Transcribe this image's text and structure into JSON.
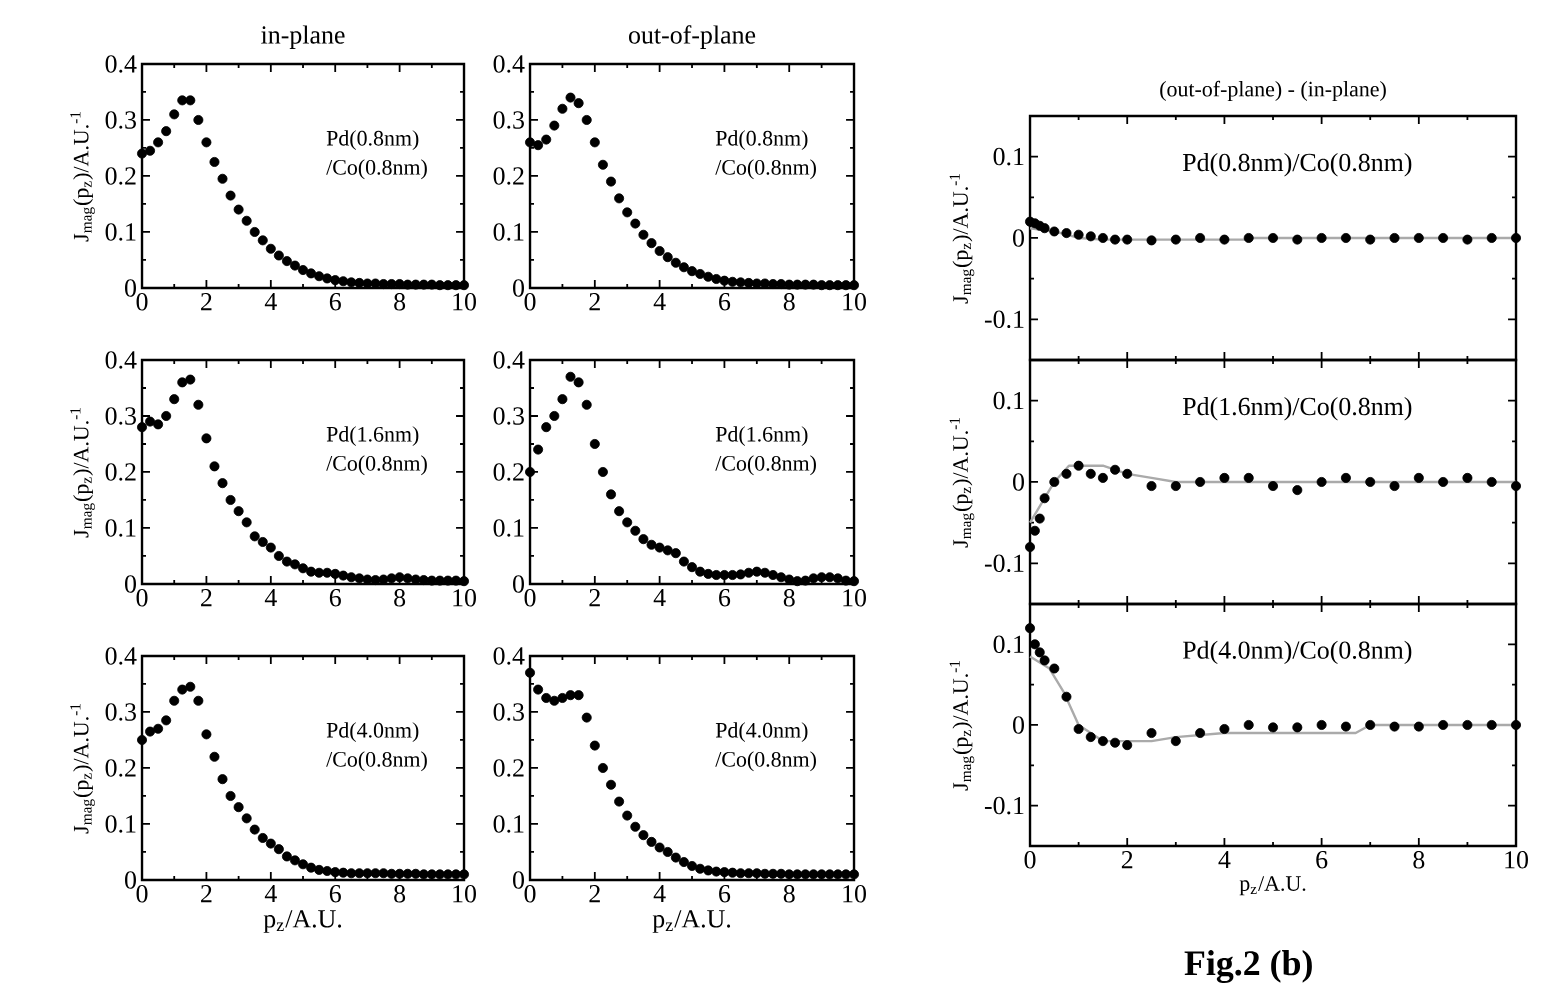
{
  "chart_data": [
    {
      "type": "scatter",
      "title": "in-plane",
      "ylabel": "J$_{mag}$(p$_{z}$)/A.U.$^{-1}$",
      "annotations": [
        "Pd(0.8nm)",
        "/Co(0.8nm)"
      ],
      "marker": "circle",
      "xlim": [
        0,
        10
      ],
      "ylim": [
        0,
        0.4
      ],
      "xticks": [
        0,
        2,
        4,
        6,
        8,
        10
      ],
      "yticks": [
        0,
        0.1,
        0.2,
        0.3,
        0.4
      ],
      "x": [
        0,
        0.25,
        0.5,
        0.75,
        1,
        1.25,
        1.5,
        1.75,
        2,
        2.25,
        2.5,
        2.75,
        3,
        3.25,
        3.5,
        3.75,
        4,
        4.25,
        4.5,
        4.75,
        5,
        5.25,
        5.5,
        5.75,
        6,
        6.25,
        6.5,
        6.75,
        7,
        7.25,
        7.5,
        7.75,
        8,
        8.25,
        8.5,
        8.75,
        9,
        9.25,
        9.5,
        9.75,
        10
      ],
      "series": [
        {
          "color": "#000000",
          "values": [
            0.24,
            0.245,
            0.26,
            0.28,
            0.31,
            0.335,
            0.335,
            0.3,
            0.26,
            0.225,
            0.195,
            0.165,
            0.14,
            0.12,
            0.1,
            0.085,
            0.07,
            0.058,
            0.048,
            0.04,
            0.032,
            0.026,
            0.021,
            0.017,
            0.014,
            0.012,
            0.01,
            0.009,
            0.008,
            0.008,
            0.007,
            0.007,
            0.007,
            0.006,
            0.006,
            0.006,
            0.006,
            0.005,
            0.005,
            0.005,
            0.005
          ]
        }
      ]
    },
    {
      "type": "scatter",
      "title": "out-of-plane",
      "annotations": [
        "Pd(0.8nm)",
        "/Co(0.8nm)"
      ],
      "marker": "circle",
      "xlim": [
        0,
        10
      ],
      "ylim": [
        0,
        0.4
      ],
      "xticks": [
        0,
        2,
        4,
        6,
        8,
        10
      ],
      "yticks": [
        0,
        0.1,
        0.2,
        0.3,
        0.4
      ],
      "x": [
        0,
        0.25,
        0.5,
        0.75,
        1,
        1.25,
        1.5,
        1.75,
        2,
        2.25,
        2.5,
        2.75,
        3,
        3.25,
        3.5,
        3.75,
        4,
        4.25,
        4.5,
        4.75,
        5,
        5.25,
        5.5,
        5.75,
        6,
        6.25,
        6.5,
        6.75,
        7,
        7.25,
        7.5,
        7.75,
        8,
        8.25,
        8.5,
        8.75,
        9,
        9.25,
        9.5,
        9.75,
        10
      ],
      "series": [
        {
          "color": "#000000",
          "values": [
            0.26,
            0.255,
            0.265,
            0.29,
            0.32,
            0.34,
            0.33,
            0.3,
            0.26,
            0.22,
            0.19,
            0.16,
            0.135,
            0.115,
            0.095,
            0.08,
            0.066,
            0.055,
            0.045,
            0.037,
            0.03,
            0.025,
            0.02,
            0.016,
            0.013,
            0.011,
            0.01,
            0.009,
            0.008,
            0.008,
            0.007,
            0.007,
            0.006,
            0.006,
            0.006,
            0.006,
            0.005,
            0.005,
            0.005,
            0.005,
            0.005
          ]
        }
      ]
    },
    {
      "type": "scatter",
      "title": "(out-of-plane) - (in-plane)",
      "ylabel": "J$_{mag}$(p$_{z}$)/A.U.$^{-1}$",
      "annotations": [
        "Pd(0.8nm)/Co(0.8nm)"
      ],
      "marker": "circle",
      "tick_labels": "y",
      "xlim": [
        0,
        10
      ],
      "ylim": [
        -0.15,
        0.15
      ],
      "xticks": [
        0,
        2,
        4,
        6,
        8,
        10
      ],
      "yticks": [
        -0.1,
        0,
        0.1
      ],
      "series": [
        {
          "color": "#000000",
          "x": [
            0,
            0.1,
            0.2,
            0.3,
            0.5,
            0.75,
            1,
            1.25,
            1.5,
            1.75,
            2,
            2.5,
            3,
            3.5,
            4,
            4.5,
            5,
            5.5,
            6,
            6.5,
            7,
            7.5,
            8,
            8.5,
            9,
            9.5,
            10
          ],
          "values": [
            0.02,
            0.018,
            0.015,
            0.012,
            0.008,
            0.006,
            0.004,
            0.002,
            0,
            -0.002,
            -0.002,
            -0.003,
            -0.002,
            0,
            -0.002,
            0,
            0,
            -0.002,
            0,
            0,
            -0.002,
            0,
            0,
            0,
            -0.002,
            0,
            0
          ]
        },
        {
          "type": "line",
          "marker": "none",
          "color": "#aaaaaa",
          "x": [
            0,
            0.5,
            1,
            1.5,
            4.5,
            4.6,
            10
          ],
          "values": [
            0.012,
            0.008,
            0,
            -0.002,
            -0.002,
            0,
            0
          ]
        }
      ]
    },
    {
      "type": "scatter",
      "ylabel": "J$_{mag}$(p$_{z}$)/A.U.$^{-1}$",
      "annotations": [
        "Pd(1.6nm)",
        "/Co(0.8nm)"
      ],
      "marker": "circle",
      "xlim": [
        0,
        10
      ],
      "ylim": [
        0,
        0.4
      ],
      "xticks": [
        0,
        2,
        4,
        6,
        8,
        10
      ],
      "yticks": [
        0,
        0.1,
        0.2,
        0.3,
        0.4
      ],
      "x": [
        0,
        0.25,
        0.5,
        0.75,
        1,
        1.25,
        1.5,
        1.75,
        2,
        2.25,
        2.5,
        2.75,
        3,
        3.25,
        3.5,
        3.75,
        4,
        4.25,
        4.5,
        4.75,
        5,
        5.25,
        5.5,
        5.75,
        6,
        6.25,
        6.5,
        6.75,
        7,
        7.25,
        7.5,
        7.75,
        8,
        8.25,
        8.5,
        8.75,
        9,
        9.25,
        9.5,
        9.75,
        10
      ],
      "series": [
        {
          "color": "#000000",
          "values": [
            0.28,
            0.29,
            0.285,
            0.3,
            0.33,
            0.36,
            0.365,
            0.32,
            0.26,
            0.21,
            0.18,
            0.15,
            0.13,
            0.11,
            0.085,
            0.075,
            0.065,
            0.05,
            0.04,
            0.035,
            0.028,
            0.022,
            0.02,
            0.02,
            0.018,
            0.015,
            0.012,
            0.01,
            0.008,
            0.007,
            0.008,
            0.01,
            0.012,
            0.01,
            0.008,
            0.007,
            0.006,
            0.006,
            0.006,
            0.006,
            0.005
          ]
        }
      ]
    },
    {
      "type": "scatter",
      "annotations": [
        "Pd(1.6nm)",
        "/Co(0.8nm)"
      ],
      "marker": "circle",
      "xlim": [
        0,
        10
      ],
      "ylim": [
        0,
        0.4
      ],
      "xticks": [
        0,
        2,
        4,
        6,
        8,
        10
      ],
      "yticks": [
        0,
        0.1,
        0.2,
        0.3,
        0.4
      ],
      "x": [
        0,
        0.25,
        0.5,
        0.75,
        1,
        1.25,
        1.5,
        1.75,
        2,
        2.25,
        2.5,
        2.75,
        3,
        3.25,
        3.5,
        3.75,
        4,
        4.25,
        4.5,
        4.75,
        5,
        5.25,
        5.5,
        5.75,
        6,
        6.25,
        6.5,
        6.75,
        7,
        7.25,
        7.5,
        7.75,
        8,
        8.25,
        8.5,
        8.75,
        9,
        9.25,
        9.5,
        9.75,
        10
      ],
      "series": [
        {
          "color": "#000000",
          "values": [
            0.2,
            0.24,
            0.28,
            0.3,
            0.33,
            0.37,
            0.36,
            0.32,
            0.25,
            0.2,
            0.16,
            0.13,
            0.11,
            0.095,
            0.08,
            0.07,
            0.065,
            0.06,
            0.055,
            0.04,
            0.03,
            0.022,
            0.018,
            0.016,
            0.016,
            0.016,
            0.017,
            0.02,
            0.022,
            0.02,
            0.016,
            0.012,
            0.008,
            0.005,
            0.006,
            0.01,
            0.012,
            0.012,
            0.01,
            0.006,
            0.005
          ]
        }
      ]
    },
    {
      "type": "scatter",
      "ylabel": "J$_{mag}$(p$_{z}$)/A.U.$^{-1}$",
      "annotations": [
        "Pd(1.6nm)/Co(0.8nm)"
      ],
      "marker": "circle",
      "tick_labels": "y",
      "xlim": [
        0,
        10
      ],
      "ylim": [
        -0.15,
        0.15
      ],
      "xticks": [
        0,
        2,
        4,
        6,
        8,
        10
      ],
      "yticks": [
        -0.1,
        0,
        0.1
      ],
      "series": [
        {
          "color": "#000000",
          "x": [
            0,
            0.1,
            0.2,
            0.3,
            0.5,
            0.75,
            1,
            1.25,
            1.5,
            1.75,
            2,
            2.5,
            3,
            3.5,
            4,
            4.5,
            5,
            5.5,
            6,
            6.5,
            7,
            7.5,
            8,
            8.5,
            9,
            9.5,
            10
          ],
          "values": [
            -0.08,
            -0.06,
            -0.045,
            -0.02,
            0,
            0.01,
            0.02,
            0.01,
            0.005,
            0.015,
            0.01,
            -0.005,
            -0.005,
            0,
            0.005,
            0.005,
            -0.005,
            -0.01,
            0,
            0.005,
            0,
            -0.005,
            0.005,
            0,
            0.005,
            0,
            -0.005
          ]
        },
        {
          "type": "line",
          "marker": "none",
          "color": "#aaaaaa",
          "x": [
            0,
            0.3,
            0.5,
            0.8,
            1.5,
            2,
            2.5,
            3,
            10
          ],
          "values": [
            -0.05,
            -0.02,
            0,
            0.02,
            0.02,
            0.01,
            0.005,
            0,
            0
          ]
        }
      ]
    },
    {
      "type": "scatter",
      "ylabel": "J$_{mag}$(p$_{z}$)/A.U.$^{-1}$",
      "xlabel": "p$_{z}$/A.U.",
      "annotations": [
        "Pd(4.0nm)",
        "/Co(0.8nm)"
      ],
      "marker": "circle",
      "xlim": [
        0,
        10
      ],
      "ylim": [
        0,
        0.4
      ],
      "xticks": [
        0,
        2,
        4,
        6,
        8,
        10
      ],
      "yticks": [
        0,
        0.1,
        0.2,
        0.3,
        0.4
      ],
      "x": [
        0,
        0.25,
        0.5,
        0.75,
        1,
        1.25,
        1.5,
        1.75,
        2,
        2.25,
        2.5,
        2.75,
        3,
        3.25,
        3.5,
        3.75,
        4,
        4.25,
        4.5,
        4.75,
        5,
        5.25,
        5.5,
        5.75,
        6,
        6.25,
        6.5,
        6.75,
        7,
        7.25,
        7.5,
        7.75,
        8,
        8.25,
        8.5,
        8.75,
        9,
        9.25,
        9.5,
        9.75,
        10
      ],
      "series": [
        {
          "color": "#000000",
          "values": [
            0.25,
            0.265,
            0.27,
            0.285,
            0.32,
            0.34,
            0.345,
            0.32,
            0.26,
            0.22,
            0.18,
            0.15,
            0.13,
            0.11,
            0.09,
            0.075,
            0.065,
            0.055,
            0.042,
            0.035,
            0.028,
            0.022,
            0.018,
            0.016,
            0.014,
            0.013,
            0.012,
            0.012,
            0.012,
            0.012,
            0.012,
            0.011,
            0.011,
            0.011,
            0.011,
            0.01,
            0.01,
            0.01,
            0.01,
            0.01,
            0.01
          ]
        }
      ]
    },
    {
      "type": "scatter",
      "xlabel": "p$_{z}$/A.U.",
      "annotations": [
        "Pd(4.0nm)",
        "/Co(0.8nm)"
      ],
      "marker": "circle",
      "xlim": [
        0,
        10
      ],
      "ylim": [
        0,
        0.4
      ],
      "xticks": [
        0,
        2,
        4,
        6,
        8,
        10
      ],
      "yticks": [
        0,
        0.1,
        0.2,
        0.3,
        0.4
      ],
      "x": [
        0,
        0.25,
        0.5,
        0.75,
        1,
        1.25,
        1.5,
        1.75,
        2,
        2.25,
        2.5,
        2.75,
        3,
        3.25,
        3.5,
        3.75,
        4,
        4.25,
        4.5,
        4.75,
        5,
        5.25,
        5.5,
        5.75,
        6,
        6.25,
        6.5,
        6.75,
        7,
        7.25,
        7.5,
        7.75,
        8,
        8.25,
        8.5,
        8.75,
        9,
        9.25,
        9.5,
        9.75,
        10
      ],
      "series": [
        {
          "color": "#000000",
          "values": [
            0.37,
            0.34,
            0.325,
            0.32,
            0.325,
            0.33,
            0.33,
            0.29,
            0.24,
            0.2,
            0.17,
            0.14,
            0.115,
            0.095,
            0.08,
            0.068,
            0.058,
            0.05,
            0.04,
            0.032,
            0.025,
            0.02,
            0.017,
            0.015,
            0.014,
            0.013,
            0.012,
            0.012,
            0.012,
            0.011,
            0.011,
            0.011,
            0.01,
            0.01,
            0.01,
            0.01,
            0.01,
            0.01,
            0.01,
            0.01,
            0.01
          ]
        }
      ]
    },
    {
      "type": "scatter",
      "ylabel": "J$_{mag}$(p$_{z}$)/A.U.$^{-1}$",
      "xlabel": "p$_{z}$/A.U.",
      "annotations": [
        "Pd(4.0nm)/Co(0.8nm)",
        "Fig.2 (b)"
      ],
      "marker": "circle",
      "xlim": [
        0,
        10
      ],
      "ylim": [
        -0.15,
        0.15
      ],
      "xticks": [
        0,
        2,
        4,
        6,
        8,
        10
      ],
      "yticks": [
        -0.1,
        0,
        0.1
      ],
      "series": [
        {
          "color": "#000000",
          "x": [
            0,
            0.1,
            0.2,
            0.3,
            0.5,
            0.75,
            1,
            1.25,
            1.5,
            1.75,
            2,
            2.5,
            3,
            3.5,
            4,
            4.5,
            5,
            5.5,
            6,
            6.5,
            7,
            7.5,
            8,
            8.5,
            9,
            9.5,
            10
          ],
          "values": [
            0.12,
            0.1,
            0.09,
            0.08,
            0.07,
            0.035,
            -0.005,
            -0.015,
            -0.02,
            -0.022,
            -0.025,
            -0.01,
            -0.02,
            -0.01,
            -0.005,
            0,
            -0.003,
            -0.003,
            0,
            -0.002,
            0,
            -0.002,
            -0.002,
            0,
            0,
            0,
            0
          ]
        },
        {
          "type": "line",
          "marker": "none",
          "color": "#aaaaaa",
          "x": [
            0,
            0.4,
            0.7,
            1,
            1.5,
            2.5,
            3,
            4,
            6.7,
            7,
            10
          ],
          "values": [
            0.085,
            0.07,
            0.04,
            0,
            -0.02,
            -0.02,
            -0.015,
            -0.01,
            -0.01,
            0,
            0
          ]
        }
      ]
    }
  ]
}
